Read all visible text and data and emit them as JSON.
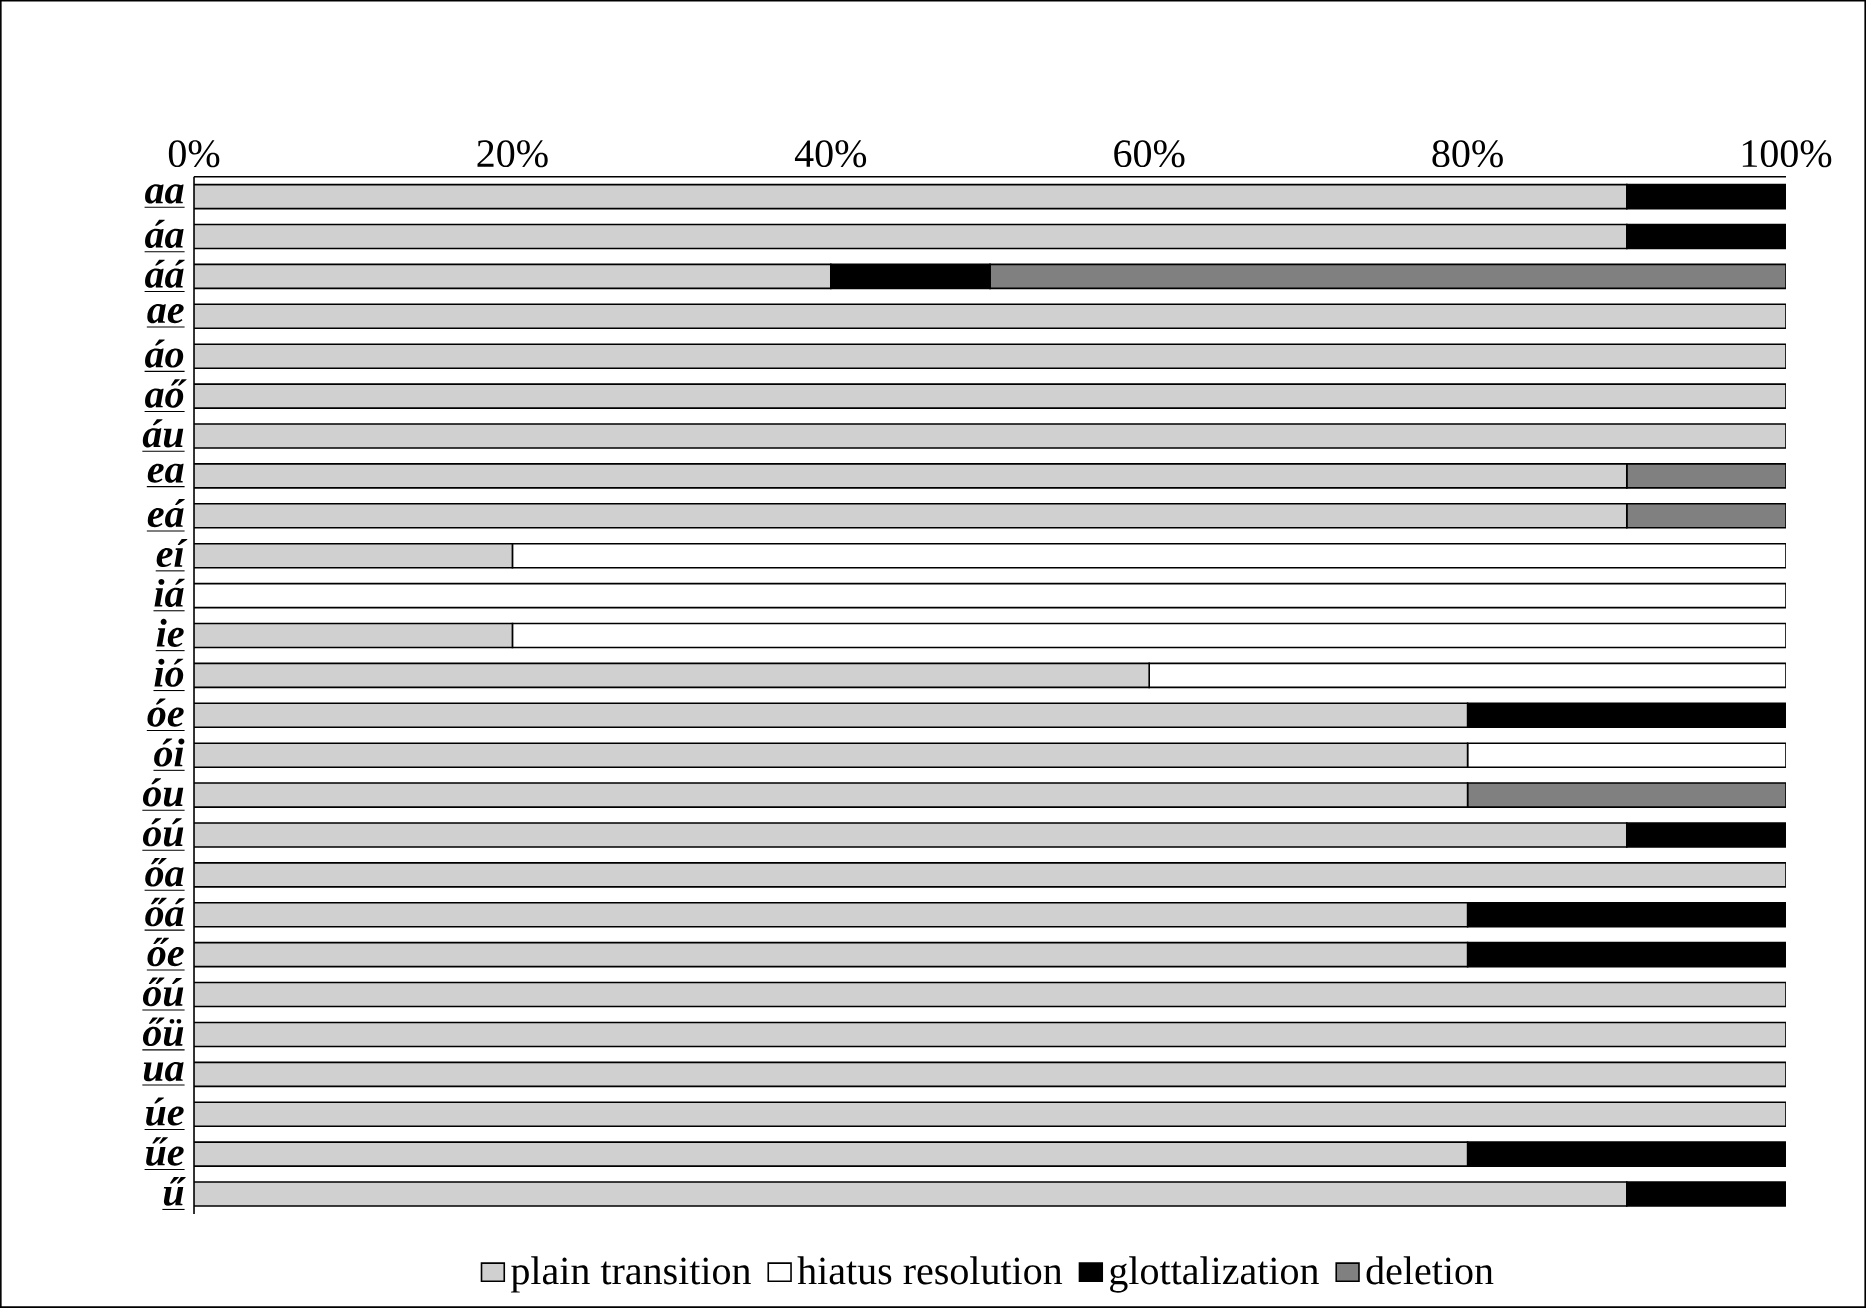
{
  "chart_data": {
    "type": "bar",
    "orientation": "horizontal",
    "stacked": true,
    "categories": [
      "aa",
      "áa",
      "áá",
      "ae",
      "áo",
      "aő",
      "áu",
      "ea",
      "eá",
      "eí",
      "iá",
      "ie",
      "ió",
      "óe",
      "ói",
      "óu",
      "óú",
      "őa",
      "őá",
      "őe",
      "őú",
      "őü",
      "ua",
      "úe",
      "űe",
      "ű"
    ],
    "series": [
      {
        "name": "plain transition",
        "color": "#d0d0d0",
        "values": [
          90,
          90,
          40,
          100,
          100,
          100,
          100,
          90,
          90,
          20,
          0,
          20,
          60,
          80,
          80,
          80,
          90,
          100,
          80,
          80,
          100,
          100,
          100,
          100,
          80,
          90
        ]
      },
      {
        "name": "hiatus resolution",
        "color": "#ffffff",
        "values": [
          0,
          0,
          0,
          0,
          0,
          0,
          0,
          0,
          0,
          80,
          100,
          80,
          40,
          0,
          20,
          0,
          0,
          0,
          0,
          0,
          0,
          0,
          0,
          0,
          0,
          0
        ]
      },
      {
        "name": "glottalization",
        "color": "#000000",
        "values": [
          10,
          10,
          10,
          0,
          0,
          0,
          0,
          0,
          0,
          0,
          0,
          0,
          0,
          20,
          0,
          0,
          10,
          0,
          20,
          20,
          0,
          0,
          0,
          0,
          20,
          10
        ]
      },
      {
        "name": "deletion",
        "color": "#808080",
        "values": [
          0,
          0,
          50,
          0,
          0,
          0,
          0,
          10,
          10,
          0,
          0,
          0,
          0,
          0,
          0,
          20,
          0,
          0,
          0,
          0,
          0,
          0,
          0,
          0,
          0,
          0
        ]
      }
    ],
    "xlim": [
      0,
      100
    ],
    "xticks": [
      {
        "value": 0,
        "label": "0%"
      },
      {
        "value": 20,
        "label": "20%"
      },
      {
        "value": 40,
        "label": "40%"
      },
      {
        "value": 60,
        "label": "60%"
      },
      {
        "value": 80,
        "label": "80%"
      },
      {
        "value": 100,
        "label": "100%"
      }
    ],
    "legend": "bottom",
    "grid": false
  }
}
